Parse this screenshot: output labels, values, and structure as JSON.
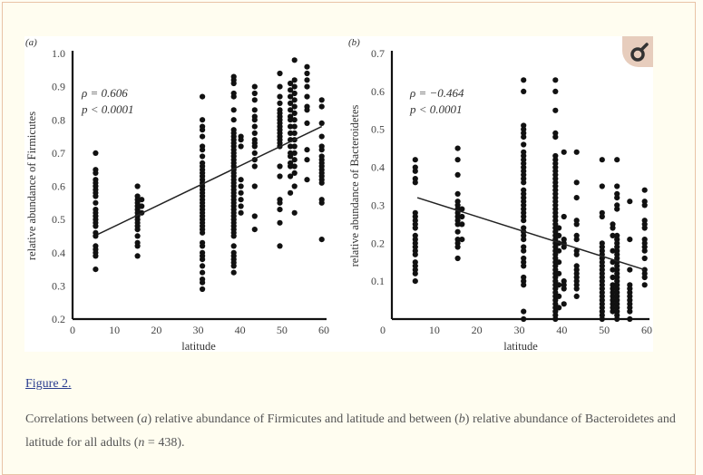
{
  "figure": {
    "link_label": "Figure 2.",
    "caption_parts": {
      "p1": "Correlations between (",
      "a": "a",
      "p2": ") relative abundance of Firmicutes and latitude and between (",
      "b": "b",
      "p3": ") relative abundance of Bacteroidetes and latitude for all adults (",
      "n": "n",
      "p4": " = 438)."
    },
    "zoom_icon": "magnifier-icon"
  },
  "chart_data": [
    {
      "type": "scatter",
      "panel_label": "(a)",
      "xlabel": "latitude",
      "ylabel": "relative abundance of Firmicutes",
      "xlim": [
        0,
        60
      ],
      "ylim": [
        0.2,
        1.0
      ],
      "xticks": [
        "0",
        "10",
        "20",
        "30",
        "40",
        "50",
        "60"
      ],
      "yticks": [
        "0.2",
        "0.3",
        "0.4",
        "0.5",
        "0.6",
        "0.7",
        "0.8",
        "0.9",
        "1.0"
      ],
      "annotations": [
        "ρ = 0.606",
        "p < 0.0001"
      ],
      "trendline": {
        "x": [
          6,
          59.5
        ],
        "y": [
          0.455,
          0.78
        ]
      },
      "columns": [
        {
          "x": 5.5,
          "y": [
            0.7,
            0.65,
            0.64,
            0.62,
            0.61,
            0.6,
            0.59,
            0.58,
            0.57,
            0.55,
            0.53,
            0.52,
            0.51,
            0.5,
            0.49,
            0.48,
            0.46,
            0.45,
            0.42,
            0.41,
            0.4,
            0.39,
            0.35
          ]
        },
        {
          "x": 15.5,
          "y": [
            0.6,
            0.57,
            0.56,
            0.55,
            0.54,
            0.53,
            0.52,
            0.51,
            0.5,
            0.49,
            0.48,
            0.47,
            0.45,
            0.43,
            0.42,
            0.39
          ]
        },
        {
          "x": 16.5,
          "y": [
            0.56,
            0.54,
            0.52
          ]
        },
        {
          "x": 31,
          "y": [
            0.87,
            0.8,
            0.78,
            0.77,
            0.75,
            0.72,
            0.71,
            0.69,
            0.67,
            0.66,
            0.65,
            0.64,
            0.63,
            0.62,
            0.61,
            0.6,
            0.59,
            0.58,
            0.57,
            0.56,
            0.55,
            0.54,
            0.53,
            0.52,
            0.51,
            0.5,
            0.49,
            0.48,
            0.47,
            0.46,
            0.43,
            0.42,
            0.4,
            0.39,
            0.38,
            0.36,
            0.34,
            0.32,
            0.31,
            0.29
          ]
        },
        {
          "x": 38.5,
          "y": [
            0.93,
            0.92,
            0.91,
            0.88,
            0.87,
            0.83,
            0.8,
            0.77,
            0.76,
            0.75,
            0.74,
            0.73,
            0.72,
            0.71,
            0.7,
            0.69,
            0.68,
            0.67,
            0.66,
            0.65,
            0.64,
            0.63,
            0.62,
            0.61,
            0.6,
            0.59,
            0.58,
            0.57,
            0.56,
            0.55,
            0.54,
            0.53,
            0.52,
            0.51,
            0.5,
            0.49,
            0.48,
            0.47,
            0.46,
            0.45,
            0.42,
            0.4,
            0.39,
            0.38,
            0.37,
            0.36,
            0.34
          ]
        },
        {
          "x": 40.2,
          "y": [
            0.75,
            0.74,
            0.72,
            0.62,
            0.6,
            0.58,
            0.56,
            0.54,
            0.52
          ]
        },
        {
          "x": 43.5,
          "y": [
            0.9,
            0.88,
            0.86,
            0.83,
            0.81,
            0.8,
            0.78,
            0.76,
            0.74,
            0.73,
            0.72,
            0.7,
            0.68,
            0.66,
            0.6,
            0.51,
            0.47
          ]
        },
        {
          "x": 49.5,
          "y": [
            0.94,
            0.9,
            0.87,
            0.85,
            0.83,
            0.82,
            0.81,
            0.8,
            0.79,
            0.78,
            0.77,
            0.76,
            0.75,
            0.74,
            0.73,
            0.72,
            0.66,
            0.63,
            0.56,
            0.55,
            0.53,
            0.49,
            0.42
          ]
        },
        {
          "x": 52,
          "y": [
            0.91,
            0.89,
            0.87,
            0.85,
            0.83,
            0.81,
            0.8,
            0.78,
            0.76,
            0.74,
            0.72,
            0.7,
            0.69,
            0.67,
            0.66,
            0.63,
            0.58
          ]
        },
        {
          "x": 53,
          "y": [
            0.98,
            0.92,
            0.9,
            0.88,
            0.86,
            0.84,
            0.82,
            0.8,
            0.78,
            0.76,
            0.74,
            0.72,
            0.7,
            0.68,
            0.66,
            0.64,
            0.6,
            0.52
          ]
        },
        {
          "x": 56,
          "y": [
            0.96,
            0.94,
            0.92,
            0.9,
            0.87,
            0.84,
            0.83,
            0.79,
            0.71,
            0.68,
            0.62
          ]
        },
        {
          "x": 59.5,
          "y": [
            0.86,
            0.84,
            0.79,
            0.75,
            0.72,
            0.71,
            0.69,
            0.68,
            0.67,
            0.66,
            0.65,
            0.64,
            0.63,
            0.62,
            0.61,
            0.56,
            0.55,
            0.44
          ]
        }
      ]
    },
    {
      "type": "scatter",
      "panel_label": "(b)",
      "xlabel": "latitude",
      "ylabel": "relative abundance of Bacteroidetes",
      "xlim": [
        0,
        60
      ],
      "ylim": [
        0,
        0.7
      ],
      "xticks": [
        "0",
        "10",
        "20",
        "30",
        "40",
        "50",
        "60"
      ],
      "yticks": [
        "0.1",
        "0.2",
        "0.3",
        "0.4",
        "0.5",
        "0.6",
        "0.7"
      ],
      "annotations": [
        "ρ = −0.464",
        "p < 0.0001"
      ],
      "trendline": {
        "x": [
          6,
          59.5
        ],
        "y": [
          0.32,
          0.13
        ]
      },
      "columns": [
        {
          "x": 5.5,
          "y": [
            0.42,
            0.4,
            0.39,
            0.37,
            0.36,
            0.28,
            0.27,
            0.26,
            0.25,
            0.24,
            0.22,
            0.21,
            0.2,
            0.19,
            0.18,
            0.17,
            0.15,
            0.14,
            0.13,
            0.12,
            0.1
          ]
        },
        {
          "x": 15.5,
          "y": [
            0.45,
            0.42,
            0.38,
            0.33,
            0.31,
            0.3,
            0.29,
            0.28,
            0.27,
            0.26,
            0.25,
            0.23,
            0.21,
            0.2,
            0.19,
            0.16
          ]
        },
        {
          "x": 16.5,
          "y": [
            0.29,
            0.27,
            0.25,
            0.21
          ]
        },
        {
          "x": 31,
          "y": [
            0.63,
            0.6,
            0.51,
            0.5,
            0.49,
            0.48,
            0.46,
            0.44,
            0.43,
            0.42,
            0.41,
            0.4,
            0.39,
            0.38,
            0.37,
            0.36,
            0.34,
            0.33,
            0.32,
            0.31,
            0.3,
            0.29,
            0.28,
            0.27,
            0.26,
            0.24,
            0.23,
            0.22,
            0.21,
            0.19,
            0.18,
            0.16,
            0.15,
            0.14,
            0.11,
            0.1,
            0.09,
            0.02,
            0.0
          ]
        },
        {
          "x": 38.5,
          "y": [
            0.63,
            0.6,
            0.55,
            0.49,
            0.48,
            0.43,
            0.42,
            0.41,
            0.4,
            0.39,
            0.38,
            0.37,
            0.36,
            0.35,
            0.34,
            0.33,
            0.32,
            0.31,
            0.3,
            0.29,
            0.28,
            0.27,
            0.26,
            0.25,
            0.24,
            0.23,
            0.22,
            0.21,
            0.2,
            0.19,
            0.18,
            0.17,
            0.16,
            0.15,
            0.14,
            0.13,
            0.12,
            0.11,
            0.1,
            0.09,
            0.08,
            0.07,
            0.06,
            0.05,
            0.04,
            0.03,
            0.02,
            0.01,
            0.0
          ]
        },
        {
          "x": 39.3,
          "y": [
            0.24,
            0.22,
            0.2,
            0.18,
            0.15,
            0.12,
            0.09,
            0.06,
            0.03
          ]
        },
        {
          "x": 40.5,
          "y": [
            0.44,
            0.27,
            0.21,
            0.2,
            0.19,
            0.1,
            0.09,
            0.08,
            0.04
          ]
        },
        {
          "x": 43.5,
          "y": [
            0.44,
            0.36,
            0.32,
            0.26,
            0.25,
            0.22,
            0.21,
            0.18,
            0.17,
            0.14,
            0.13,
            0.12,
            0.11,
            0.1,
            0.09,
            0.08,
            0.06
          ]
        },
        {
          "x": 49.5,
          "y": [
            0.42,
            0.35,
            0.28,
            0.27,
            0.2,
            0.19,
            0.18,
            0.17,
            0.16,
            0.15,
            0.14,
            0.13,
            0.12,
            0.11,
            0.1,
            0.09,
            0.08,
            0.07,
            0.06,
            0.05,
            0.04,
            0.03,
            0.02,
            0.01,
            0.0
          ]
        },
        {
          "x": 52,
          "y": [
            0.25,
            0.24,
            0.22,
            0.18,
            0.15,
            0.13,
            0.11,
            0.09,
            0.08,
            0.07,
            0.06,
            0.05,
            0.04,
            0.03,
            0.02
          ]
        },
        {
          "x": 53,
          "y": [
            0.42,
            0.35,
            0.33,
            0.32,
            0.3,
            0.29,
            0.22,
            0.21,
            0.2,
            0.19,
            0.18,
            0.17,
            0.16,
            0.15,
            0.14,
            0.13,
            0.12,
            0.11,
            0.1,
            0.09,
            0.08,
            0.07,
            0.06,
            0.05,
            0.04,
            0.03,
            0.02,
            0.01,
            0.0
          ]
        },
        {
          "x": 56,
          "y": [
            0.31,
            0.21,
            0.13,
            0.09,
            0.08,
            0.07,
            0.06,
            0.05,
            0.04,
            0.03,
            0.02,
            0.0
          ]
        },
        {
          "x": 59.5,
          "y": [
            0.34,
            0.31,
            0.3,
            0.26,
            0.25,
            0.24,
            0.21,
            0.2,
            0.19,
            0.18,
            0.16,
            0.13,
            0.12,
            0.11,
            0.09
          ]
        }
      ]
    }
  ]
}
